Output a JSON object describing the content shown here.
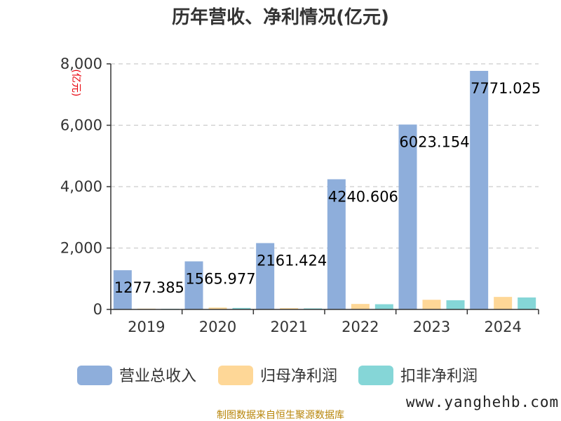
{
  "title": "历年营收、净利情况(亿元)",
  "unit_label": "(亿元)",
  "source_text": "制图数据来自恒生聚源数据库",
  "watermark": "www.yanghehb.com",
  "colors": {
    "revenue": "#8eaedb",
    "net_profit": "#fed797",
    "deducted_profit": "#85d6d7",
    "grid": "#cccccc",
    "axis": "#333333"
  },
  "chart_data": {
    "type": "bar",
    "title": "历年营收、净利情况(亿元)",
    "ylabel": "(亿元)",
    "xlabel": "",
    "categories": [
      "2019",
      "2020",
      "2021",
      "2022",
      "2023",
      "2024"
    ],
    "y_ticks": [
      "0",
      "2,000",
      "4,000",
      "6,000",
      "8,000"
    ],
    "y_tick_values": [
      0,
      2000,
      4000,
      6000,
      8000
    ],
    "ylim": [
      0,
      8000
    ],
    "grid": true,
    "legend_position": "bottom",
    "series": [
      {
        "name": "营业总收入",
        "values": [
          1277.385,
          1565.977,
          2161.424,
          4240.606,
          6023.154,
          7771.025
        ],
        "labels": [
          "1277.385",
          "1565.977",
          "2161.424",
          "4240.606",
          "6023.154",
          "7771.025"
        ]
      },
      {
        "name": "归母净利润",
        "values": [
          26,
          61,
          42,
          179,
          315,
          408
        ]
      },
      {
        "name": "扣非净利润",
        "values": [
          20,
          50,
          35,
          170,
          300,
          390
        ]
      }
    ]
  }
}
